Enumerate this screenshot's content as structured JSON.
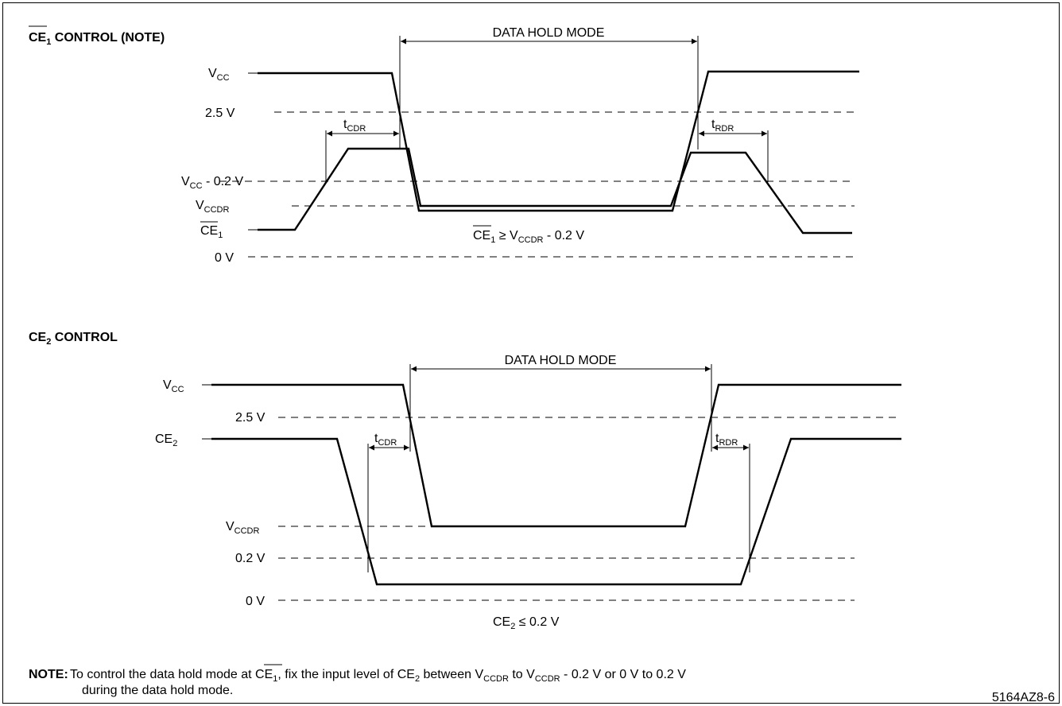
{
  "diagram": {
    "figure_id": "5164AZ8-6",
    "upper": {
      "title_main": "CE",
      "title_sub": "1",
      "title_rest": " CONTROL (NOTE)",
      "mode_label": "DATA HOLD MODE",
      "levels": {
        "vcc": {
          "main": "V",
          "sub": "CC",
          "rest": ""
        },
        "v25": {
          "main": "2.5 V",
          "sub": "",
          "rest": ""
        },
        "vcc02": {
          "main": "V",
          "sub": "CC",
          "rest": " - 0.2 V"
        },
        "vccdr": {
          "main": "V",
          "sub": "CCDR",
          "rest": ""
        },
        "ce1": {
          "main": "CE",
          "sub": "1",
          "rest": ""
        },
        "v0": {
          "main": "0 V",
          "sub": "",
          "rest": ""
        }
      },
      "tcdr": {
        "main": "t",
        "sub": "CDR"
      },
      "trdr": {
        "main": "t",
        "sub": "RDR"
      },
      "condition": {
        "a": "CE",
        "a_sub": "1",
        "mid": " ≥ V",
        "b_sub": "CCDR",
        "rest": "  - 0.2 V"
      }
    },
    "lower": {
      "title_main": "CE",
      "title_sub": "2",
      "title_rest": " CONTROL",
      "mode_label": "DATA HOLD MODE",
      "levels": {
        "vcc": {
          "main": "V",
          "sub": "CC",
          "rest": ""
        },
        "v25": {
          "main": "2.5 V",
          "sub": "",
          "rest": ""
        },
        "ce2": {
          "main": "CE",
          "sub": "2",
          "rest": ""
        },
        "vccdr": {
          "main": "V",
          "sub": "CCDR",
          "rest": ""
        },
        "v02": {
          "main": "0.2 V",
          "sub": "",
          "rest": ""
        },
        "v0": {
          "main": "0 V",
          "sub": "",
          "rest": ""
        }
      },
      "tcdr": {
        "main": "t",
        "sub": "CDR"
      },
      "trdr": {
        "main": "t",
        "sub": "RDR"
      },
      "condition": {
        "a": "CE",
        "a_sub": "2",
        "mid": " ≤ 0.2 V"
      }
    },
    "note": {
      "label": "NOTE:",
      "l1_a": "To control the data hold mode at ",
      "l1_ce": "CE",
      "l1_ce_sub": "1",
      "l1_b": ", fix the input level of CE",
      "l1_b_sub": "2",
      "l1_c": " between V",
      "l1_c_sub": "CCDR",
      "l1_d": " to V",
      "l1_d_sub": "CCDR",
      "l1_e": " - 0.2 V or 0 V to 0.2 V",
      "line2": "during the data hold mode."
    }
  }
}
